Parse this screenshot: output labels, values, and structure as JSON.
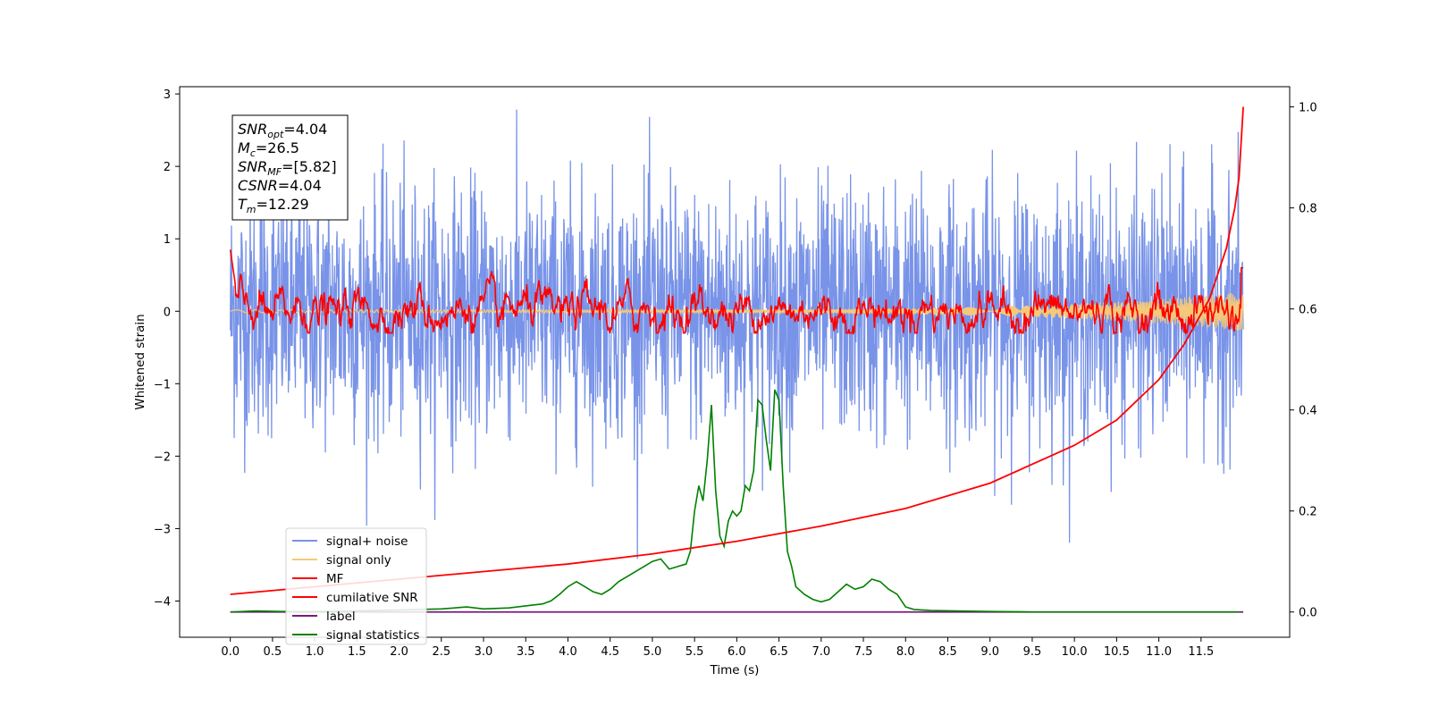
{
  "chart_data": {
    "type": "line",
    "xlabel": "Time (s)",
    "ylabel": "Whitened strain",
    "xlim": [
      -0.6,
      12.55
    ],
    "ylim": [
      -4.5,
      3.1
    ],
    "ylim_right": [
      -0.05,
      1.04
    ],
    "grid": false,
    "legend_placement": "lower-left",
    "x_ticks": [
      "0.0",
      "0.5",
      "1.0",
      "1.5",
      "2.0",
      "2.5",
      "3.0",
      "3.5",
      "4.0",
      "4.5",
      "5.0",
      "5.5",
      "6.0",
      "6.5",
      "7.0",
      "7.5",
      "8.0",
      "8.5",
      "9.0",
      "9.5",
      "10.0",
      "10.5",
      "11.0",
      "11.5"
    ],
    "y_ticks_left": [
      "−4",
      "−3",
      "−2",
      "−1",
      "0",
      "1",
      "2",
      "3"
    ],
    "y_ticks_right": [
      "0.0",
      "0.2",
      "0.4",
      "0.6",
      "0.8",
      "1.0"
    ],
    "info_box": [
      {
        "base": "SNR",
        "sub": "opt",
        "value": "=4.04"
      },
      {
        "base": "M",
        "sub": "c",
        "value": "=26.5"
      },
      {
        "base": "SNR",
        "sub": "MF",
        "value": "=[5.82]"
      },
      {
        "base": "CSNR",
        "sub": "",
        "value": "=4.04"
      },
      {
        "base": "T",
        "sub": "m",
        "value": "=12.29"
      }
    ],
    "series": [
      {
        "name": "signal+ noise",
        "color": "#7893e8",
        "axis": "left",
        "x_range": [
          0.0,
          12.0
        ],
        "y_range": [
          -4.1,
          2.8
        ],
        "description_values": {
          "mean": 0.0,
          "std": 0.9
        }
      },
      {
        "name": "signal only",
        "color": "#f5c97a",
        "axis": "left",
        "x_range": [
          0.0,
          12.0
        ],
        "y_range": [
          -0.4,
          0.3
        ]
      },
      {
        "name": "MF",
        "color": "#ff0000",
        "axis": "left",
        "x_range": [
          0.0,
          12.0
        ],
        "y_range": [
          -0.3,
          1.0
        ]
      },
      {
        "name": "cumilative SNR",
        "color": "#ff0000",
        "axis": "right",
        "x": [
          0.0,
          1.0,
          2.0,
          3.0,
          4.0,
          5.0,
          6.0,
          7.0,
          8.0,
          9.0,
          10.0,
          10.5,
          11.0,
          11.3,
          11.6,
          11.8,
          11.9,
          11.95,
          12.0
        ],
        "y": [
          0.035,
          0.05,
          0.065,
          0.08,
          0.095,
          0.115,
          0.14,
          0.17,
          0.205,
          0.255,
          0.33,
          0.38,
          0.46,
          0.53,
          0.62,
          0.72,
          0.8,
          0.86,
          1.0
        ]
      },
      {
        "name": "label",
        "color": "#7a1a7a",
        "axis": "right",
        "x": [
          0.0,
          12.0
        ],
        "y": [
          0.0,
          0.0
        ]
      },
      {
        "name": "signal statistics",
        "color": "#008000",
        "axis": "right",
        "x": [
          0.0,
          0.3,
          0.6,
          1.0,
          1.5,
          2.0,
          2.5,
          2.8,
          3.0,
          3.3,
          3.5,
          3.7,
          3.8,
          3.9,
          4.0,
          4.1,
          4.2,
          4.3,
          4.4,
          4.5,
          4.6,
          4.7,
          4.8,
          4.9,
          5.0,
          5.1,
          5.2,
          5.3,
          5.4,
          5.45,
          5.5,
          5.55,
          5.6,
          5.65,
          5.7,
          5.75,
          5.8,
          5.85,
          5.9,
          5.95,
          6.0,
          6.05,
          6.1,
          6.15,
          6.2,
          6.25,
          6.3,
          6.35,
          6.4,
          6.45,
          6.5,
          6.55,
          6.6,
          6.65,
          6.7,
          6.8,
          6.9,
          7.0,
          7.1,
          7.2,
          7.3,
          7.4,
          7.5,
          7.6,
          7.7,
          7.8,
          7.9,
          8.0,
          8.1,
          8.3,
          8.6,
          9.0,
          9.5,
          10.0,
          10.5,
          11.0,
          11.5,
          11.95
        ],
        "y": [
          0.0,
          0.002,
          0.001,
          0.001,
          0.002,
          0.004,
          0.006,
          0.01,
          0.006,
          0.008,
          0.012,
          0.016,
          0.022,
          0.035,
          0.05,
          0.06,
          0.05,
          0.04,
          0.035,
          0.045,
          0.06,
          0.07,
          0.08,
          0.09,
          0.1,
          0.105,
          0.085,
          0.09,
          0.095,
          0.12,
          0.2,
          0.25,
          0.22,
          0.3,
          0.41,
          0.24,
          0.15,
          0.13,
          0.18,
          0.2,
          0.19,
          0.2,
          0.25,
          0.24,
          0.28,
          0.42,
          0.41,
          0.34,
          0.28,
          0.44,
          0.42,
          0.25,
          0.12,
          0.09,
          0.05,
          0.035,
          0.025,
          0.02,
          0.025,
          0.04,
          0.055,
          0.045,
          0.05,
          0.065,
          0.06,
          0.045,
          0.035,
          0.01,
          0.005,
          0.003,
          0.002,
          0.001,
          0.0,
          0.0,
          0.0,
          0.0,
          0.0,
          0.0
        ]
      }
    ]
  }
}
